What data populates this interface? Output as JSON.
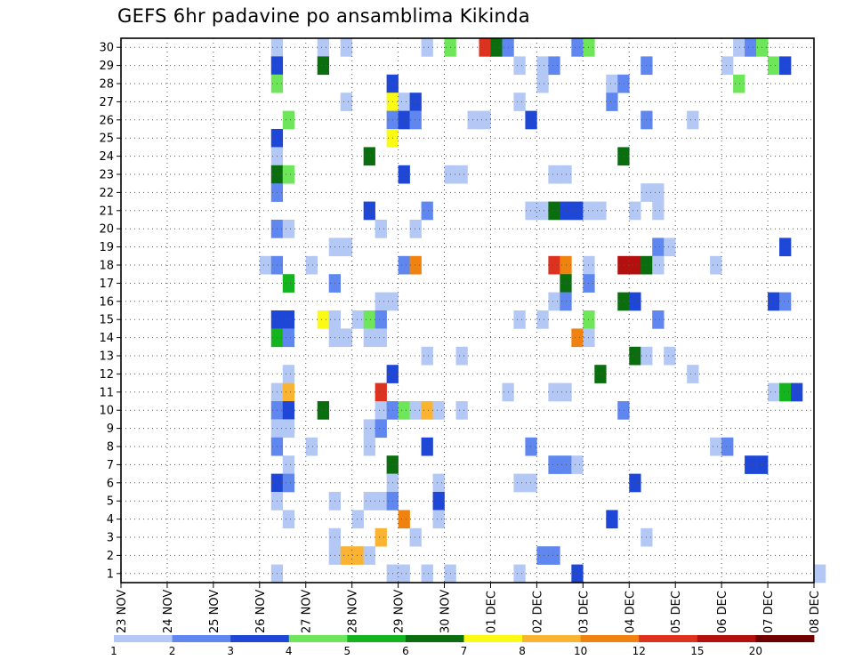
{
  "title": "GEFS 6hr padavine po ansamblima Kikinda",
  "chart_data": {
    "type": "heatmap",
    "title": "GEFS 6hr padavine po ansamblima Kikinda",
    "x_tick_labels": [
      "23 NOV",
      "24 NOV",
      "25 NOV",
      "26 NOV",
      "27 NOV",
      "28 NOV",
      "29 NOV",
      "30 NOV",
      "01 DEC",
      "02 DEC",
      "03 DEC",
      "04 DEC",
      "05 DEC",
      "06 DEC",
      "07 DEC",
      "08 DEC"
    ],
    "xlim_days": [
      0,
      15
    ],
    "steps_per_day": 4,
    "y_tick_labels": [
      1,
      2,
      3,
      4,
      5,
      6,
      7,
      8,
      9,
      10,
      11,
      12,
      13,
      14,
      15,
      16,
      17,
      18,
      19,
      20,
      21,
      22,
      23,
      24,
      25,
      26,
      27,
      28,
      29,
      30
    ],
    "ylim": [
      0,
      30
    ],
    "grid": true,
    "legend_placement": "bottom",
    "colorbar": {
      "labels": [
        "1",
        "2",
        "3",
        "4",
        "5",
        "6",
        "7",
        "8",
        "10",
        "12",
        "15",
        "20"
      ],
      "colors": [
        "#b4c8f5",
        "#5f87ef",
        "#1e46d7",
        "#6ee65a",
        "#14b41e",
        "#0a6e0f",
        "#fafa14",
        "#fab432",
        "#f0820f",
        "#dc321e",
        "#b40f0f",
        "#6e0000"
      ]
    },
    "cells": [
      [
        30,
        13,
        1
      ],
      [
        30,
        17,
        1
      ],
      [
        30,
        19,
        1
      ],
      [
        30,
        26,
        1
      ],
      [
        30,
        28,
        4
      ],
      [
        30,
        31,
        10
      ],
      [
        30,
        32,
        6
      ],
      [
        30,
        33,
        2
      ],
      [
        30,
        39,
        2
      ],
      [
        30,
        40,
        4
      ],
      [
        30,
        53,
        1
      ],
      [
        30,
        54,
        2
      ],
      [
        30,
        55,
        4
      ],
      [
        29,
        13,
        3
      ],
      [
        29,
        17,
        6
      ],
      [
        29,
        34,
        1
      ],
      [
        29,
        36,
        1
      ],
      [
        29,
        37,
        2
      ],
      [
        29,
        45,
        2
      ],
      [
        29,
        52,
        1
      ],
      [
        29,
        56,
        4
      ],
      [
        29,
        57,
        3
      ],
      [
        28,
        13,
        4
      ],
      [
        28,
        23,
        3
      ],
      [
        28,
        36,
        1
      ],
      [
        28,
        42,
        1
      ],
      [
        28,
        43,
        2
      ],
      [
        28,
        53,
        4
      ],
      [
        27,
        19,
        1
      ],
      [
        27,
        23,
        7
      ],
      [
        27,
        24,
        1
      ],
      [
        27,
        25,
        3
      ],
      [
        27,
        34,
        1
      ],
      [
        27,
        42,
        2
      ],
      [
        26,
        14,
        4
      ],
      [
        26,
        23,
        2
      ],
      [
        26,
        24,
        3
      ],
      [
        26,
        25,
        2
      ],
      [
        26,
        30,
        1
      ],
      [
        26,
        31,
        1
      ],
      [
        26,
        35,
        3
      ],
      [
        26,
        45,
        2
      ],
      [
        26,
        49,
        1
      ],
      [
        25,
        13,
        3
      ],
      [
        25,
        23,
        7
      ],
      [
        24,
        13,
        1
      ],
      [
        24,
        21,
        6
      ],
      [
        24,
        43,
        6
      ],
      [
        23,
        13,
        6
      ],
      [
        23,
        14,
        4
      ],
      [
        23,
        24,
        3
      ],
      [
        23,
        28,
        1
      ],
      [
        23,
        29,
        1
      ],
      [
        23,
        37,
        1
      ],
      [
        23,
        38,
        1
      ],
      [
        22,
        13,
        2
      ],
      [
        22,
        45,
        1
      ],
      [
        22,
        46,
        1
      ],
      [
        21,
        21,
        3
      ],
      [
        21,
        26,
        2
      ],
      [
        21,
        35,
        1
      ],
      [
        21,
        36,
        1
      ],
      [
        21,
        37,
        6
      ],
      [
        21,
        38,
        3
      ],
      [
        21,
        39,
        3
      ],
      [
        21,
        40,
        1
      ],
      [
        21,
        41,
        1
      ],
      [
        21,
        44,
        1
      ],
      [
        21,
        46,
        1
      ],
      [
        20,
        13,
        2
      ],
      [
        20,
        14,
        1
      ],
      [
        20,
        22,
        1
      ],
      [
        20,
        25,
        1
      ],
      [
        19,
        18,
        1
      ],
      [
        19,
        19,
        1
      ],
      [
        19,
        46,
        2
      ],
      [
        19,
        47,
        1
      ],
      [
        19,
        57,
        3
      ],
      [
        18,
        12,
        1
      ],
      [
        18,
        13,
        2
      ],
      [
        18,
        16,
        1
      ],
      [
        18,
        24,
        2
      ],
      [
        18,
        25,
        9
      ],
      [
        18,
        37,
        10
      ],
      [
        18,
        38,
        9
      ],
      [
        18,
        40,
        1
      ],
      [
        18,
        43,
        11
      ],
      [
        18,
        44,
        11
      ],
      [
        18,
        45,
        6
      ],
      [
        18,
        46,
        1
      ],
      [
        18,
        51,
        1
      ],
      [
        17,
        14,
        5
      ],
      [
        17,
        18,
        2
      ],
      [
        17,
        38,
        6
      ],
      [
        17,
        40,
        2
      ],
      [
        16,
        22,
        1
      ],
      [
        16,
        23,
        1
      ],
      [
        16,
        37,
        1
      ],
      [
        16,
        38,
        2
      ],
      [
        16,
        43,
        6
      ],
      [
        16,
        44,
        3
      ],
      [
        16,
        56,
        3
      ],
      [
        16,
        57,
        2
      ],
      [
        15,
        13,
        3
      ],
      [
        15,
        14,
        3
      ],
      [
        15,
        17,
        7
      ],
      [
        15,
        18,
        1
      ],
      [
        15,
        20,
        1
      ],
      [
        15,
        21,
        4
      ],
      [
        15,
        22,
        2
      ],
      [
        15,
        34,
        1
      ],
      [
        15,
        36,
        1
      ],
      [
        15,
        40,
        4
      ],
      [
        15,
        46,
        2
      ],
      [
        14,
        13,
        5
      ],
      [
        14,
        14,
        2
      ],
      [
        14,
        18,
        1
      ],
      [
        14,
        19,
        1
      ],
      [
        14,
        21,
        1
      ],
      [
        14,
        22,
        1
      ],
      [
        14,
        39,
        9
      ],
      [
        14,
        40,
        1
      ],
      [
        13,
        26,
        1
      ],
      [
        13,
        29,
        1
      ],
      [
        13,
        44,
        6
      ],
      [
        13,
        45,
        1
      ],
      [
        13,
        47,
        1
      ],
      [
        12,
        14,
        1
      ],
      [
        12,
        23,
        3
      ],
      [
        12,
        41,
        6
      ],
      [
        12,
        49,
        1
      ],
      [
        11,
        13,
        1
      ],
      [
        11,
        14,
        8
      ],
      [
        11,
        22,
        10
      ],
      [
        11,
        33,
        1
      ],
      [
        11,
        37,
        1
      ],
      [
        11,
        38,
        1
      ],
      [
        11,
        56,
        1
      ],
      [
        11,
        57,
        5
      ],
      [
        11,
        58,
        3
      ],
      [
        10,
        13,
        2
      ],
      [
        10,
        14,
        3
      ],
      [
        10,
        17,
        6
      ],
      [
        10,
        22,
        1
      ],
      [
        10,
        23,
        2
      ],
      [
        10,
        24,
        4
      ],
      [
        10,
        25,
        1
      ],
      [
        10,
        26,
        8
      ],
      [
        10,
        27,
        1
      ],
      [
        10,
        29,
        1
      ],
      [
        10,
        43,
        2
      ],
      [
        9,
        13,
        1
      ],
      [
        9,
        14,
        1
      ],
      [
        9,
        21,
        1
      ],
      [
        9,
        22,
        2
      ],
      [
        8,
        13,
        2
      ],
      [
        8,
        16,
        1
      ],
      [
        8,
        21,
        1
      ],
      [
        8,
        26,
        3
      ],
      [
        8,
        35,
        2
      ],
      [
        8,
        51,
        1
      ],
      [
        8,
        52,
        2
      ],
      [
        7,
        14,
        1
      ],
      [
        7,
        23,
        6
      ],
      [
        7,
        37,
        2
      ],
      [
        7,
        38,
        2
      ],
      [
        7,
        39,
        1
      ],
      [
        7,
        54,
        3
      ],
      [
        7,
        55,
        3
      ],
      [
        6,
        13,
        3
      ],
      [
        6,
        14,
        2
      ],
      [
        6,
        23,
        1
      ],
      [
        6,
        27,
        1
      ],
      [
        6,
        34,
        1
      ],
      [
        6,
        35,
        1
      ],
      [
        6,
        44,
        3
      ],
      [
        5,
        13,
        1
      ],
      [
        5,
        18,
        1
      ],
      [
        5,
        21,
        1
      ],
      [
        5,
        22,
        1
      ],
      [
        5,
        23,
        2
      ],
      [
        5,
        27,
        3
      ],
      [
        4,
        14,
        1
      ],
      [
        4,
        20,
        1
      ],
      [
        4,
        24,
        9
      ],
      [
        4,
        27,
        1
      ],
      [
        4,
        42,
        3
      ],
      [
        3,
        18,
        1
      ],
      [
        3,
        22,
        8
      ],
      [
        3,
        25,
        1
      ],
      [
        3,
        45,
        1
      ],
      [
        2,
        18,
        1
      ],
      [
        2,
        19,
        8
      ],
      [
        2,
        20,
        8
      ],
      [
        2,
        21,
        1
      ],
      [
        2,
        36,
        2
      ],
      [
        2,
        37,
        2
      ],
      [
        1,
        13,
        1
      ],
      [
        1,
        23,
        1
      ],
      [
        1,
        24,
        1
      ],
      [
        1,
        26,
        1
      ],
      [
        1,
        28,
        1
      ],
      [
        1,
        34,
        1
      ],
      [
        1,
        39,
        3
      ],
      [
        1,
        60,
        1
      ]
    ]
  }
}
